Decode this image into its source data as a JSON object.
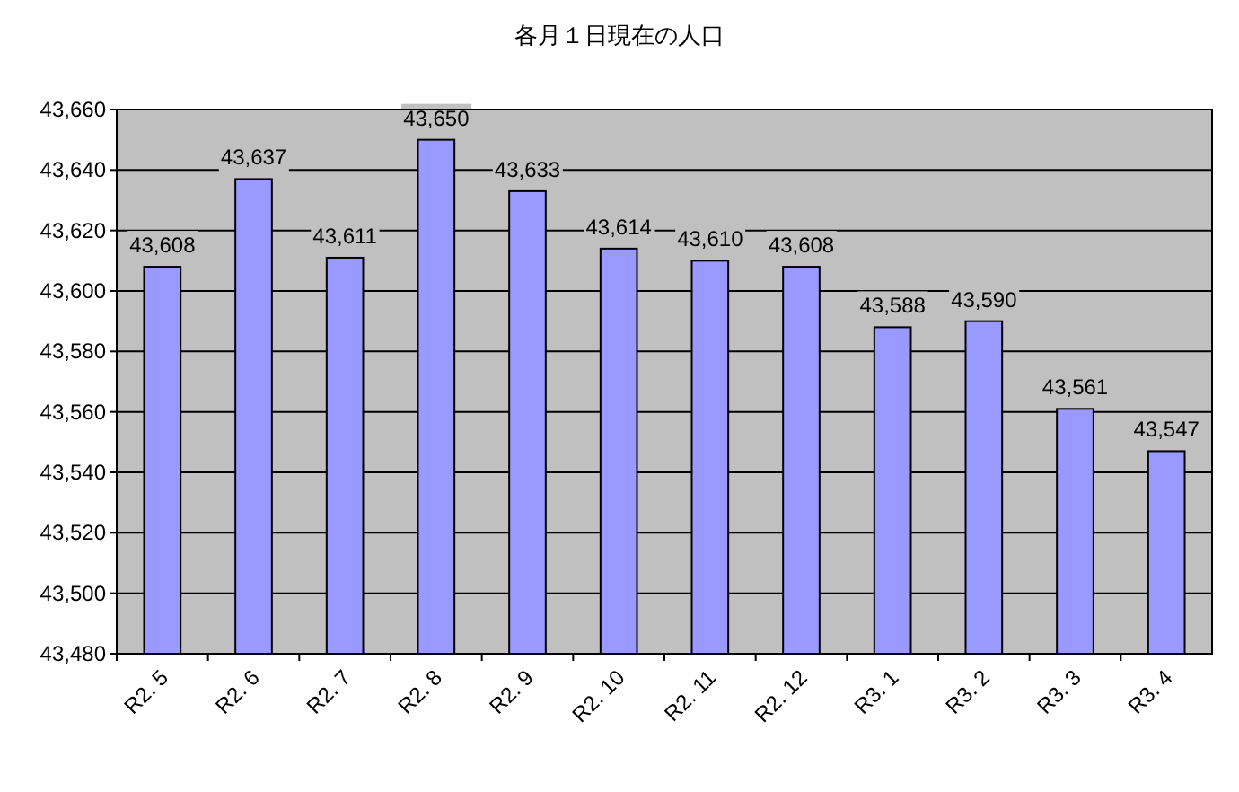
{
  "chart_data": {
    "type": "bar",
    "title": "各月１日現在の人口",
    "categories": [
      "R2. 5",
      "R2. 6",
      "R2. 7",
      "R2. 8",
      "R2. 9",
      "R2. 10",
      "R2. 11",
      "R2. 12",
      "R3. 1",
      "R3. 2",
      "R3. 3",
      "R3. 4"
    ],
    "values": [
      43608,
      43637,
      43611,
      43650,
      43633,
      43614,
      43610,
      43608,
      43588,
      43590,
      43561,
      43547
    ],
    "value_labels": [
      "43,608",
      "43,637",
      "43,611",
      "43,650",
      "43,633",
      "43,614",
      "43,610",
      "43,608",
      "43,588",
      "43,590",
      "43,561",
      "43,547"
    ],
    "color": "#9999ff",
    "ylim": [
      43480,
      43660
    ],
    "yticks": [
      {
        "value": 43480,
        "label": "43,480"
      },
      {
        "value": 43500,
        "label": "43,500"
      },
      {
        "value": 43520,
        "label": "43,520"
      },
      {
        "value": 43540,
        "label": "43,540"
      },
      {
        "value": 43560,
        "label": "43,560"
      },
      {
        "value": 43580,
        "label": "43,580"
      },
      {
        "value": 43600,
        "label": "43,600"
      },
      {
        "value": 43620,
        "label": "43,620"
      },
      {
        "value": 43640,
        "label": "43,640"
      },
      {
        "value": 43660,
        "label": "43,660"
      }
    ],
    "grid": "y"
  }
}
